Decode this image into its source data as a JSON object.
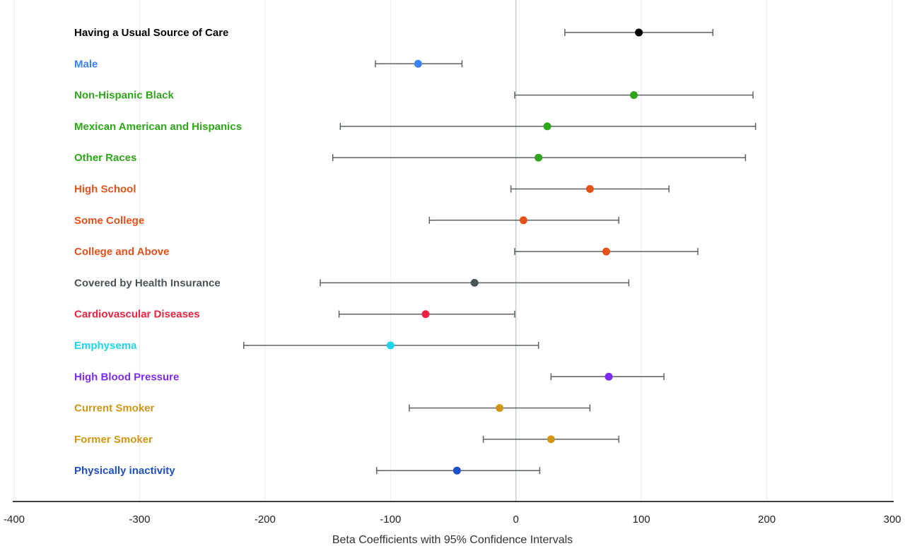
{
  "chart_data": {
    "type": "scatter",
    "subtype": "forest-plot",
    "xlabel": "Beta Coefficients with 95% Confidence Intervals",
    "xlim": [
      -400,
      300
    ],
    "xticks": [
      -400,
      -300,
      -200,
      -100,
      0,
      100,
      200,
      300
    ],
    "grid": "vertical",
    "reference_line_x": 0,
    "whisker_color": "#5a6266",
    "rows": [
      {
        "label": "Having a Usual Source of Care",
        "estimate": 98,
        "lower": 39,
        "upper": 157,
        "color": "#000000"
      },
      {
        "label": "Male",
        "estimate": -78,
        "lower": -112,
        "upper": -43,
        "color": "#3b82f6"
      },
      {
        "label": "Non-Hispanic Black",
        "estimate": 94,
        "lower": -1,
        "upper": 189,
        "color": "#2ea619"
      },
      {
        "label": "Mexican American and Hispanics",
        "estimate": 25,
        "lower": -140,
        "upper": 191,
        "color": "#2ea619"
      },
      {
        "label": "Other Races",
        "estimate": 18,
        "lower": -146,
        "upper": 183,
        "color": "#2ea619"
      },
      {
        "label": "High School",
        "estimate": 59,
        "lower": -4,
        "upper": 122,
        "color": "#e4511b"
      },
      {
        "label": "Some College",
        "estimate": 6,
        "lower": -69,
        "upper": 82,
        "color": "#e4511b"
      },
      {
        "label": "College and Above",
        "estimate": 72,
        "lower": -1,
        "upper": 145,
        "color": "#e4511b"
      },
      {
        "label": "Covered by Health Insurance",
        "estimate": -33,
        "lower": -156,
        "upper": 90,
        "color": "#4a5358"
      },
      {
        "label": "Cardiovascular Diseases",
        "estimate": -72,
        "lower": -141,
        "upper": -1,
        "color": "#ef2040"
      },
      {
        "label": "Emphysema",
        "estimate": -100,
        "lower": -217,
        "upper": 18,
        "color": "#1fd3e8"
      },
      {
        "label": "High Blood Pressure",
        "estimate": 74,
        "lower": 28,
        "upper": 118,
        "color": "#7b2cf0"
      },
      {
        "label": "Current Smoker",
        "estimate": -13,
        "lower": -85,
        "upper": 59,
        "color": "#d19616"
      },
      {
        "label": "Former Smoker",
        "estimate": 28,
        "lower": -26,
        "upper": 82,
        "color": "#d19616"
      },
      {
        "label": "Physically inactivity",
        "estimate": -47,
        "lower": -111,
        "upper": 19,
        "color": "#1f4fc8"
      }
    ]
  }
}
